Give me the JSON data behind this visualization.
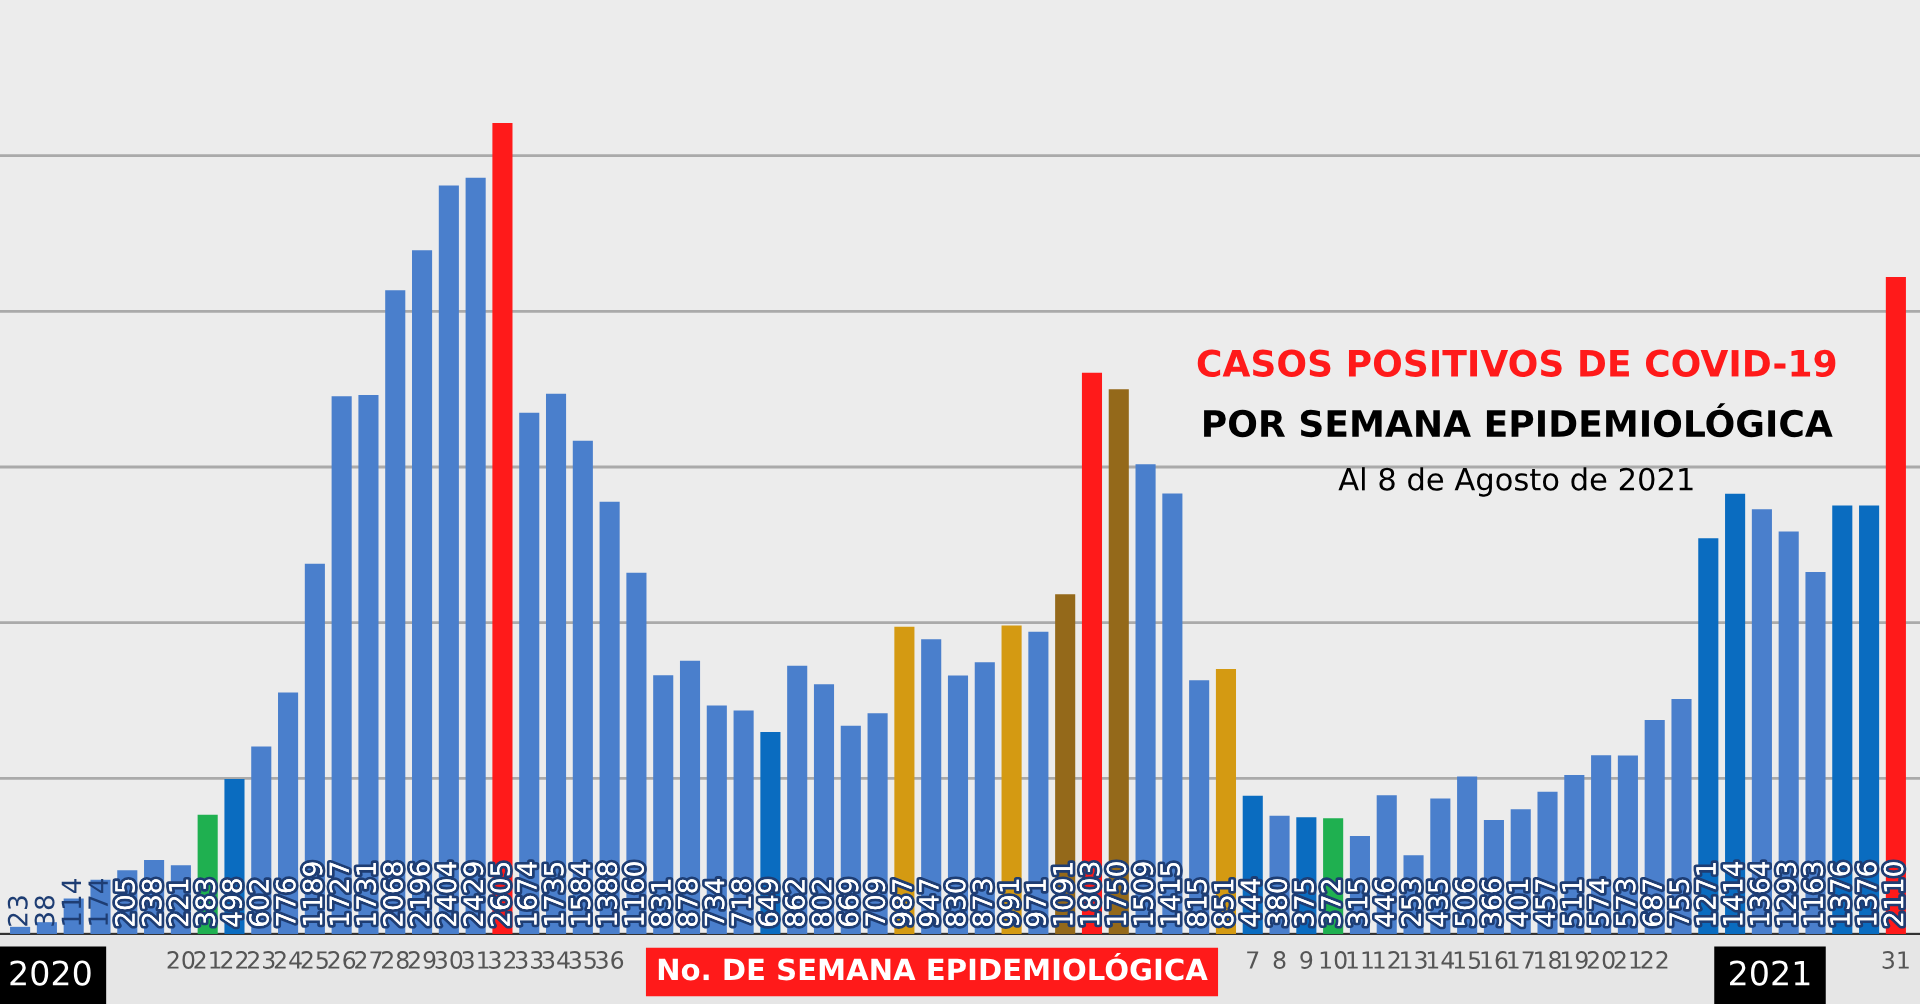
{
  "chart_data": {
    "type": "bar",
    "title": "CASOS POSITIVOS DE COVID-19",
    "subtitle": "POR SEMANA EPIDEMIOLÓGICA",
    "xlabel": "No. DE SEMANA EPIDEMIOLÓGICA",
    "annotations": [
      "Al 8 de Agosto de 2021",
      "2020",
      "2021"
    ],
    "categories": [
      null,
      null,
      null,
      null,
      null,
      null,
      "20",
      "21",
      "22",
      "23",
      "24",
      "25",
      "26",
      "27",
      "28",
      "29",
      "30",
      "31",
      "32",
      "33",
      "34",
      "35",
      "36",
      null,
      null,
      null,
      null,
      null,
      null,
      null,
      null,
      null,
      null,
      null,
      null,
      null,
      null,
      null,
      null,
      null,
      null,
      null,
      null,
      null,
      null,
      null,
      "7",
      "8",
      "9",
      "10",
      "11",
      "12",
      "13",
      "14",
      "15",
      "16",
      "17",
      "18",
      "19",
      "20",
      "21",
      "22",
      null,
      null,
      null,
      null,
      null,
      null,
      null,
      null,
      "31"
    ],
    "values": [
      23,
      38,
      114,
      174,
      205,
      238,
      221,
      383,
      498,
      602,
      776,
      1189,
      1727,
      1731,
      2068,
      2196,
      2404,
      2429,
      2605,
      1674,
      1735,
      1584,
      1388,
      1160,
      831,
      878,
      734,
      718,
      649,
      862,
      802,
      669,
      709,
      987,
      947,
      830,
      873,
      991,
      971,
      1091,
      1803,
      1750,
      1509,
      1415,
      815,
      851,
      444,
      380,
      375,
      372,
      315,
      446,
      253,
      435,
      506,
      366,
      401,
      457,
      511,
      574,
      573,
      687,
      755,
      1271,
      1414,
      1364,
      1293,
      1163,
      1376,
      1376,
      2110
    ],
    "colors": [
      "#4a7fcc",
      "#4a7fcc",
      "#4a7fcc",
      "#4a7fcc",
      "#4a7fcc",
      "#4a7fcc",
      "#4a7fcc",
      "#1fb050",
      "#0a6cc0",
      "#4a7fcc",
      "#4a7fcc",
      "#4a7fcc",
      "#4a7fcc",
      "#4a7fcc",
      "#4a7fcc",
      "#4a7fcc",
      "#4a7fcc",
      "#4a7fcc",
      "#ff1a1a",
      "#4a7fcc",
      "#4a7fcc",
      "#4a7fcc",
      "#4a7fcc",
      "#4a7fcc",
      "#4a7fcc",
      "#4a7fcc",
      "#4a7fcc",
      "#4a7fcc",
      "#0a6cc0",
      "#4a7fcc",
      "#4a7fcc",
      "#4a7fcc",
      "#4a7fcc",
      "#d49a12",
      "#4a7fcc",
      "#4a7fcc",
      "#4a7fcc",
      "#d49a12",
      "#4a7fcc",
      "#94691a",
      "#ff1a1a",
      "#94691a",
      "#4a7fcc",
      "#4a7fcc",
      "#4a7fcc",
      "#d49a12",
      "#0a6cc0",
      "#4a7fcc",
      "#0a6cc0",
      "#1fb050",
      "#4a7fcc",
      "#4a7fcc",
      "#4a7fcc",
      "#4a7fcc",
      "#4a7fcc",
      "#4a7fcc",
      "#4a7fcc",
      "#4a7fcc",
      "#4a7fcc",
      "#4a7fcc",
      "#4a7fcc",
      "#4a7fcc",
      "#4a7fcc",
      "#0a6cc0",
      "#0a6cc0",
      "#4a7fcc",
      "#4a7fcc",
      "#4a7fcc",
      "#0a6cc0",
      "#0a6cc0",
      "#ff1a1a"
    ],
    "ylim": [
      0,
      3000
    ],
    "yticks": [
      {
        "value": 0,
        "label": null
      },
      {
        "value": 500,
        "label": null
      },
      {
        "value": 1000,
        "label": null
      },
      {
        "value": 1500,
        "label": null
      },
      {
        "value": 2000,
        "label": null
      },
      {
        "value": 2500,
        "label": null
      }
    ],
    "grid": "y",
    "tick_labels": "x",
    "data_labels": true
  }
}
